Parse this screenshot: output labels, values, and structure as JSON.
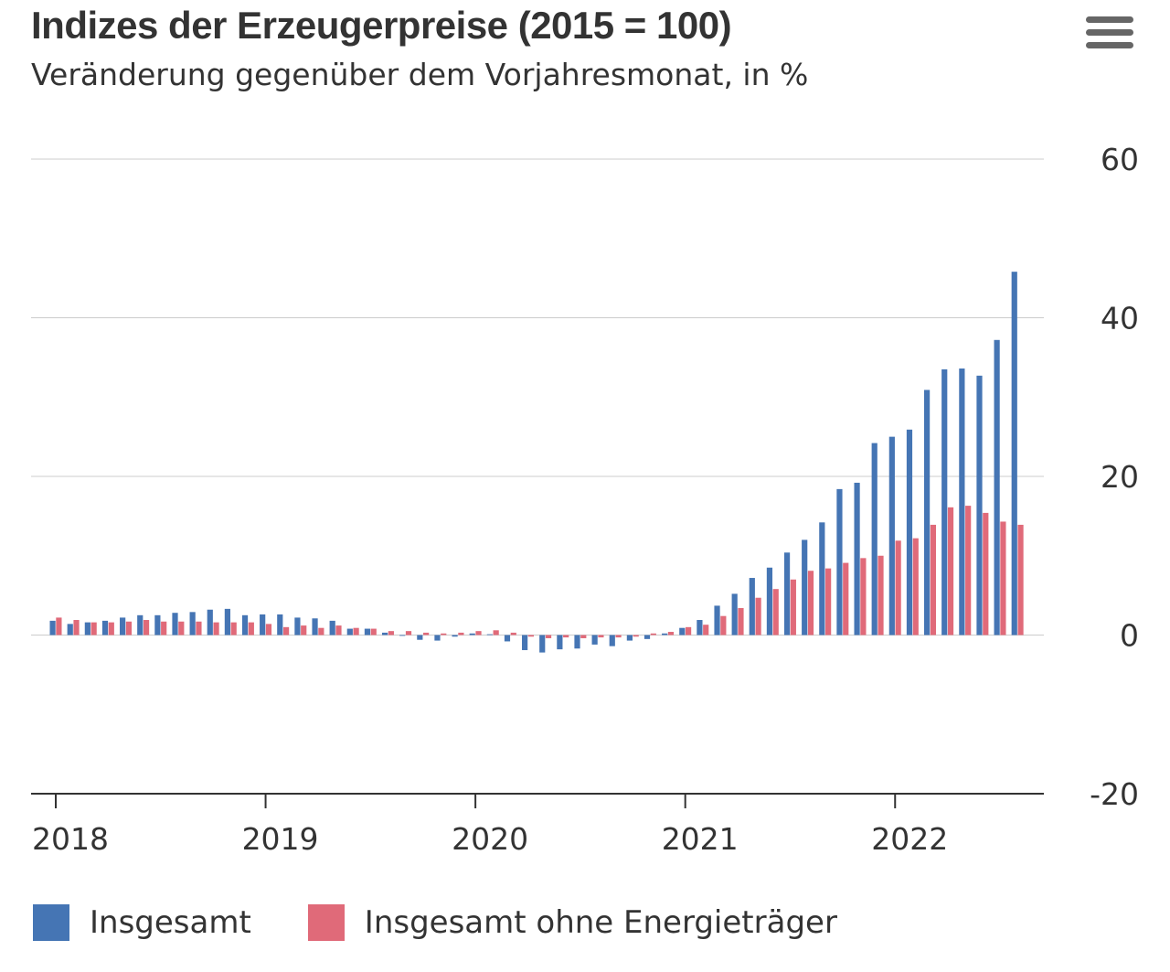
{
  "header": {
    "title": "Indizes der Erzeugerpreise (2015 = 100)",
    "subtitle": "Veränderung gegenüber dem Vorjahresmonat, in %",
    "menu_icon": "hamburger-menu-icon"
  },
  "colors": {
    "series1": "#4575b4",
    "series2": "#e06a79",
    "grid": "#cccccc",
    "axis": "#333333"
  },
  "legend": {
    "items": [
      {
        "label": "Insgesamt",
        "color": "#4575b4"
      },
      {
        "label": "Insgesamt ohne Energieträger",
        "color": "#e06a79"
      }
    ]
  },
  "chart_data": {
    "type": "bar",
    "title": "Indizes der Erzeugerpreise (2015 = 100)",
    "subtitle": "Veränderung gegenüber dem Vorjahresmonat, in %",
    "xlabel": "",
    "ylabel": "",
    "ylim": [
      -20,
      60
    ],
    "yticks": [
      "60",
      "40",
      "20",
      "0",
      "-20"
    ],
    "xticks": [
      "2018",
      "2019",
      "2020",
      "2021",
      "2022"
    ],
    "grid": true,
    "legend_position": "bottom",
    "categories": [
      "2018-01",
      "2018-02",
      "2018-03",
      "2018-04",
      "2018-05",
      "2018-06",
      "2018-07",
      "2018-08",
      "2018-09",
      "2018-10",
      "2018-11",
      "2018-12",
      "2019-01",
      "2019-02",
      "2019-03",
      "2019-04",
      "2019-05",
      "2019-06",
      "2019-07",
      "2019-08",
      "2019-09",
      "2019-10",
      "2019-11",
      "2019-12",
      "2020-01",
      "2020-02",
      "2020-03",
      "2020-04",
      "2020-05",
      "2020-06",
      "2020-07",
      "2020-08",
      "2020-09",
      "2020-10",
      "2020-11",
      "2020-12",
      "2021-01",
      "2021-02",
      "2021-03",
      "2021-04",
      "2021-05",
      "2021-06",
      "2021-07",
      "2021-08",
      "2021-09",
      "2021-10",
      "2021-11",
      "2021-12",
      "2022-01",
      "2022-02",
      "2022-03",
      "2022-04",
      "2022-05",
      "2022-06",
      "2022-07",
      "2022-08"
    ],
    "series": [
      {
        "name": "Insgesamt",
        "values": [
          1.8,
          1.4,
          1.6,
          1.8,
          2.2,
          2.5,
          2.5,
          2.8,
          2.9,
          3.2,
          3.3,
          2.5,
          2.6,
          2.6,
          2.2,
          2.1,
          1.8,
          0.8,
          0.8,
          0.3,
          -0.1,
          -0.6,
          -0.7,
          -0.2,
          0.2,
          0.1,
          -0.8,
          -1.9,
          -2.2,
          -1.8,
          -1.7,
          -1.2,
          -1.4,
          -0.7,
          -0.5,
          0.2,
          0.9,
          1.9,
          3.7,
          5.2,
          7.2,
          8.5,
          10.4,
          12.0,
          14.2,
          18.4,
          19.2,
          24.2,
          25.0,
          25.9,
          30.9,
          33.5,
          33.6,
          32.7,
          37.2,
          45.8
        ]
      },
      {
        "name": "Insgesamt ohne Energieträger",
        "values": [
          2.2,
          1.9,
          1.6,
          1.6,
          1.7,
          1.9,
          1.7,
          1.7,
          1.7,
          1.6,
          1.6,
          1.6,
          1.4,
          1.0,
          1.2,
          0.9,
          1.2,
          0.9,
          0.8,
          0.5,
          0.5,
          0.3,
          0.2,
          0.3,
          0.5,
          0.6,
          0.3,
          -0.2,
          -0.4,
          -0.3,
          -0.4,
          -0.3,
          -0.3,
          -0.2,
          0.2,
          0.4,
          1.0,
          1.3,
          2.4,
          3.4,
          4.7,
          5.8,
          7.0,
          8.1,
          8.4,
          9.1,
          9.7,
          10.0,
          11.9,
          12.2,
          13.9,
          16.1,
          16.3,
          15.4,
          14.3,
          13.9
        ]
      }
    ]
  }
}
